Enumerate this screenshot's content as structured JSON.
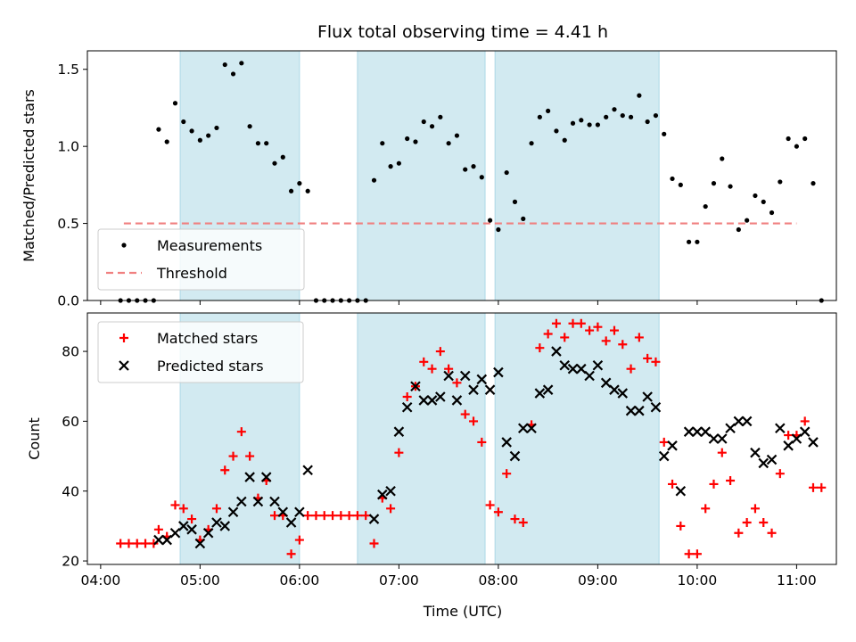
{
  "chart_data": [
    {
      "type": "scatter",
      "title": "Flux total observing time = 4.41 h",
      "xlabel": "",
      "ylabel": "Matched/Predicted stars",
      "ylim": [
        0,
        1.62
      ],
      "yticks": [
        0.0,
        0.5,
        1.0,
        1.5
      ],
      "ytick_labels": [
        "0.0",
        "0.5",
        "1.0",
        "1.5"
      ],
      "xlim": [
        "03:52",
        "11:24"
      ],
      "shaded_intervals": [
        [
          "04:48",
          "06:00"
        ],
        [
          "06:35",
          "07:52"
        ],
        [
          "07:58",
          "09:37"
        ]
      ],
      "shade_color": "#add8e6",
      "legend": {
        "position": "lower-left",
        "entries": [
          "Measurements",
          "Threshold"
        ]
      },
      "series": [
        {
          "name": "Measurements",
          "marker": "dot",
          "color": "#000000",
          "points": [
            [
              "04:12",
              0.0
            ],
            [
              "04:17",
              0.0
            ],
            [
              "04:22",
              0.0
            ],
            [
              "04:27",
              0.0
            ],
            [
              "04:32",
              0.0
            ],
            [
              "04:35",
              1.11
            ],
            [
              "04:40",
              1.03
            ],
            [
              "04:45",
              1.28
            ],
            [
              "04:50",
              1.16
            ],
            [
              "04:55",
              1.1
            ],
            [
              "05:00",
              1.04
            ],
            [
              "05:05",
              1.07
            ],
            [
              "05:10",
              1.12
            ],
            [
              "05:15",
              1.53
            ],
            [
              "05:20",
              1.47
            ],
            [
              "05:25",
              1.54
            ],
            [
              "05:30",
              1.13
            ],
            [
              "05:35",
              1.02
            ],
            [
              "05:40",
              1.02
            ],
            [
              "05:45",
              0.89
            ],
            [
              "05:50",
              0.93
            ],
            [
              "05:55",
              0.71
            ],
            [
              "06:00",
              0.76
            ],
            [
              "06:05",
              0.71
            ],
            [
              "06:10",
              0.0
            ],
            [
              "06:15",
              0.0
            ],
            [
              "06:20",
              0.0
            ],
            [
              "06:25",
              0.0
            ],
            [
              "06:30",
              0.0
            ],
            [
              "06:35",
              0.0
            ],
            [
              "06:40",
              0.0
            ],
            [
              "06:45",
              0.78
            ],
            [
              "06:50",
              1.02
            ],
            [
              "06:55",
              0.87
            ],
            [
              "07:00",
              0.89
            ],
            [
              "07:05",
              1.05
            ],
            [
              "07:10",
              1.03
            ],
            [
              "07:15",
              1.16
            ],
            [
              "07:20",
              1.13
            ],
            [
              "07:25",
              1.19
            ],
            [
              "07:30",
              1.02
            ],
            [
              "07:35",
              1.07
            ],
            [
              "07:40",
              0.85
            ],
            [
              "07:45",
              0.87
            ],
            [
              "07:50",
              0.8
            ],
            [
              "07:55",
              0.52
            ],
            [
              "08:00",
              0.46
            ],
            [
              "08:05",
              0.83
            ],
            [
              "08:10",
              0.64
            ],
            [
              "08:15",
              0.53
            ],
            [
              "08:20",
              1.02
            ],
            [
              "08:25",
              1.19
            ],
            [
              "08:30",
              1.23
            ],
            [
              "08:35",
              1.1
            ],
            [
              "08:40",
              1.04
            ],
            [
              "08:45",
              1.15
            ],
            [
              "08:50",
              1.17
            ],
            [
              "08:55",
              1.14
            ],
            [
              "09:00",
              1.14
            ],
            [
              "09:05",
              1.19
            ],
            [
              "09:10",
              1.24
            ],
            [
              "09:15",
              1.2
            ],
            [
              "09:20",
              1.19
            ],
            [
              "09:25",
              1.33
            ],
            [
              "09:30",
              1.16
            ],
            [
              "09:35",
              1.2
            ],
            [
              "09:40",
              1.08
            ],
            [
              "09:45",
              0.79
            ],
            [
              "09:50",
              0.75
            ],
            [
              "09:55",
              0.38
            ],
            [
              "10:00",
              0.38
            ],
            [
              "10:05",
              0.61
            ],
            [
              "10:10",
              0.76
            ],
            [
              "10:15",
              0.92
            ],
            [
              "10:20",
              0.74
            ],
            [
              "10:25",
              0.46
            ],
            [
              "10:30",
              0.52
            ],
            [
              "10:35",
              0.68
            ],
            [
              "10:40",
              0.64
            ],
            [
              "10:45",
              0.57
            ],
            [
              "10:50",
              0.77
            ],
            [
              "10:55",
              1.05
            ],
            [
              "11:00",
              1.0
            ],
            [
              "11:05",
              1.05
            ],
            [
              "11:10",
              0.76
            ],
            [
              "11:15",
              0.0
            ]
          ]
        },
        {
          "name": "Threshold",
          "marker": "dashed-line",
          "color": "#f08080",
          "points": [
            [
              "04:14",
              0.5
            ],
            [
              "11:00",
              0.5
            ]
          ]
        }
      ]
    },
    {
      "type": "scatter",
      "title": "",
      "xlabel": "Time (UTC)",
      "ylabel": "Count",
      "ylim": [
        19,
        91
      ],
      "yticks": [
        20,
        40,
        60,
        80
      ],
      "ytick_labels": [
        "20",
        "40",
        "60",
        "80"
      ],
      "xlim": [
        "03:52",
        "11:24"
      ],
      "xticks": [
        "04:00",
        "05:00",
        "06:00",
        "07:00",
        "08:00",
        "09:00",
        "10:00",
        "11:00"
      ],
      "xtick_labels": [
        "04:00",
        "05:00",
        "06:00",
        "07:00",
        "08:00",
        "09:00",
        "10:00",
        "11:00"
      ],
      "shaded_intervals": [
        [
          "04:48",
          "06:00"
        ],
        [
          "06:35",
          "07:52"
        ],
        [
          "07:58",
          "09:37"
        ]
      ],
      "shade_color": "#add8e6",
      "legend": {
        "position": "upper-left",
        "entries": [
          "Matched stars",
          "Predicted stars"
        ]
      },
      "series": [
        {
          "name": "Matched stars",
          "marker": "plus",
          "color": "#ff0000",
          "points": [
            [
              "04:12",
              25
            ],
            [
              "04:17",
              25
            ],
            [
              "04:22",
              25
            ],
            [
              "04:27",
              25
            ],
            [
              "04:32",
              25
            ],
            [
              "04:35",
              29
            ],
            [
              "04:40",
              27
            ],
            [
              "04:45",
              36
            ],
            [
              "04:50",
              35
            ],
            [
              "04:55",
              32
            ],
            [
              "05:00",
              26
            ],
            [
              "05:05",
              29
            ],
            [
              "05:10",
              35
            ],
            [
              "05:15",
              46
            ],
            [
              "05:20",
              50
            ],
            [
              "05:25",
              57
            ],
            [
              "05:30",
              50
            ],
            [
              "05:35",
              38
            ],
            [
              "05:40",
              43
            ],
            [
              "05:45",
              33
            ],
            [
              "05:50",
              33
            ],
            [
              "05:55",
              22
            ],
            [
              "06:00",
              26
            ],
            [
              "06:05",
              33
            ],
            [
              "06:10",
              33
            ],
            [
              "06:15",
              33
            ],
            [
              "06:20",
              33
            ],
            [
              "06:25",
              33
            ],
            [
              "06:30",
              33
            ],
            [
              "06:35",
              33
            ],
            [
              "06:40",
              33
            ],
            [
              "06:45",
              25
            ],
            [
              "06:50",
              38
            ],
            [
              "06:55",
              35
            ],
            [
              "07:00",
              51
            ],
            [
              "07:05",
              67
            ],
            [
              "07:10",
              70
            ],
            [
              "07:15",
              77
            ],
            [
              "07:20",
              75
            ],
            [
              "07:25",
              80
            ],
            [
              "07:30",
              75
            ],
            [
              "07:35",
              71
            ],
            [
              "07:40",
              62
            ],
            [
              "07:45",
              60
            ],
            [
              "07:50",
              54
            ],
            [
              "07:55",
              36
            ],
            [
              "08:00",
              34
            ],
            [
              "08:05",
              45
            ],
            [
              "08:10",
              32
            ],
            [
              "08:15",
              31
            ],
            [
              "08:20",
              59
            ],
            [
              "08:25",
              81
            ],
            [
              "08:30",
              85
            ],
            [
              "08:35",
              88
            ],
            [
              "08:40",
              84
            ],
            [
              "08:45",
              88
            ],
            [
              "08:50",
              88
            ],
            [
              "08:55",
              86
            ],
            [
              "09:00",
              87
            ],
            [
              "09:05",
              83
            ],
            [
              "09:10",
              86
            ],
            [
              "09:15",
              82
            ],
            [
              "09:20",
              75
            ],
            [
              "09:25",
              84
            ],
            [
              "09:30",
              78
            ],
            [
              "09:35",
              77
            ],
            [
              "09:40",
              54
            ],
            [
              "09:45",
              42
            ],
            [
              "09:50",
              30
            ],
            [
              "09:55",
              22
            ],
            [
              "10:00",
              22
            ],
            [
              "10:05",
              35
            ],
            [
              "10:10",
              42
            ],
            [
              "10:15",
              51
            ],
            [
              "10:20",
              43
            ],
            [
              "10:25",
              28
            ],
            [
              "10:30",
              31
            ],
            [
              "10:35",
              35
            ],
            [
              "10:40",
              31
            ],
            [
              "10:45",
              28
            ],
            [
              "10:50",
              45
            ],
            [
              "10:55",
              56
            ],
            [
              "11:00",
              56
            ],
            [
              "11:05",
              60
            ],
            [
              "11:10",
              41
            ],
            [
              "11:15",
              41
            ]
          ]
        },
        {
          "name": "Predicted stars",
          "marker": "x",
          "color": "#000000",
          "points": [
            [
              "04:35",
              26
            ],
            [
              "04:40",
              26
            ],
            [
              "04:45",
              28
            ],
            [
              "04:50",
              30
            ],
            [
              "04:55",
              29
            ],
            [
              "05:00",
              25
            ],
            [
              "05:05",
              28
            ],
            [
              "05:10",
              31
            ],
            [
              "05:15",
              30
            ],
            [
              "05:20",
              34
            ],
            [
              "05:25",
              37
            ],
            [
              "05:30",
              44
            ],
            [
              "05:35",
              37
            ],
            [
              "05:40",
              44
            ],
            [
              "05:45",
              37
            ],
            [
              "05:50",
              34
            ],
            [
              "05:55",
              31
            ],
            [
              "06:00",
              34
            ],
            [
              "06:05",
              46
            ],
            [
              "06:45",
              32
            ],
            [
              "06:50",
              39
            ],
            [
              "06:55",
              40
            ],
            [
              "07:00",
              57
            ],
            [
              "07:05",
              64
            ],
            [
              "07:10",
              70
            ],
            [
              "07:15",
              66
            ],
            [
              "07:20",
              66
            ],
            [
              "07:25",
              67
            ],
            [
              "07:30",
              73
            ],
            [
              "07:35",
              66
            ],
            [
              "07:40",
              73
            ],
            [
              "07:45",
              69
            ],
            [
              "07:50",
              72
            ],
            [
              "07:55",
              69
            ],
            [
              "08:00",
              74
            ],
            [
              "08:05",
              54
            ],
            [
              "08:10",
              50
            ],
            [
              "08:15",
              58
            ],
            [
              "08:20",
              58
            ],
            [
              "08:25",
              68
            ],
            [
              "08:30",
              69
            ],
            [
              "08:35",
              80
            ],
            [
              "08:40",
              76
            ],
            [
              "08:45",
              75
            ],
            [
              "08:50",
              75
            ],
            [
              "08:55",
              73
            ],
            [
              "09:00",
              76
            ],
            [
              "09:05",
              71
            ],
            [
              "09:10",
              69
            ],
            [
              "09:15",
              68
            ],
            [
              "09:20",
              63
            ],
            [
              "09:25",
              63
            ],
            [
              "09:30",
              67
            ],
            [
              "09:35",
              64
            ],
            [
              "09:40",
              50
            ],
            [
              "09:45",
              53
            ],
            [
              "09:50",
              40
            ],
            [
              "09:55",
              57
            ],
            [
              "10:00",
              57
            ],
            [
              "10:05",
              57
            ],
            [
              "10:10",
              55
            ],
            [
              "10:15",
              55
            ],
            [
              "10:20",
              58
            ],
            [
              "10:25",
              60
            ],
            [
              "10:30",
              60
            ],
            [
              "10:35",
              51
            ],
            [
              "10:40",
              48
            ],
            [
              "10:45",
              49
            ],
            [
              "10:50",
              58
            ],
            [
              "10:55",
              53
            ],
            [
              "11:00",
              55
            ],
            [
              "11:05",
              57
            ],
            [
              "11:10",
              54
            ]
          ]
        }
      ]
    }
  ]
}
